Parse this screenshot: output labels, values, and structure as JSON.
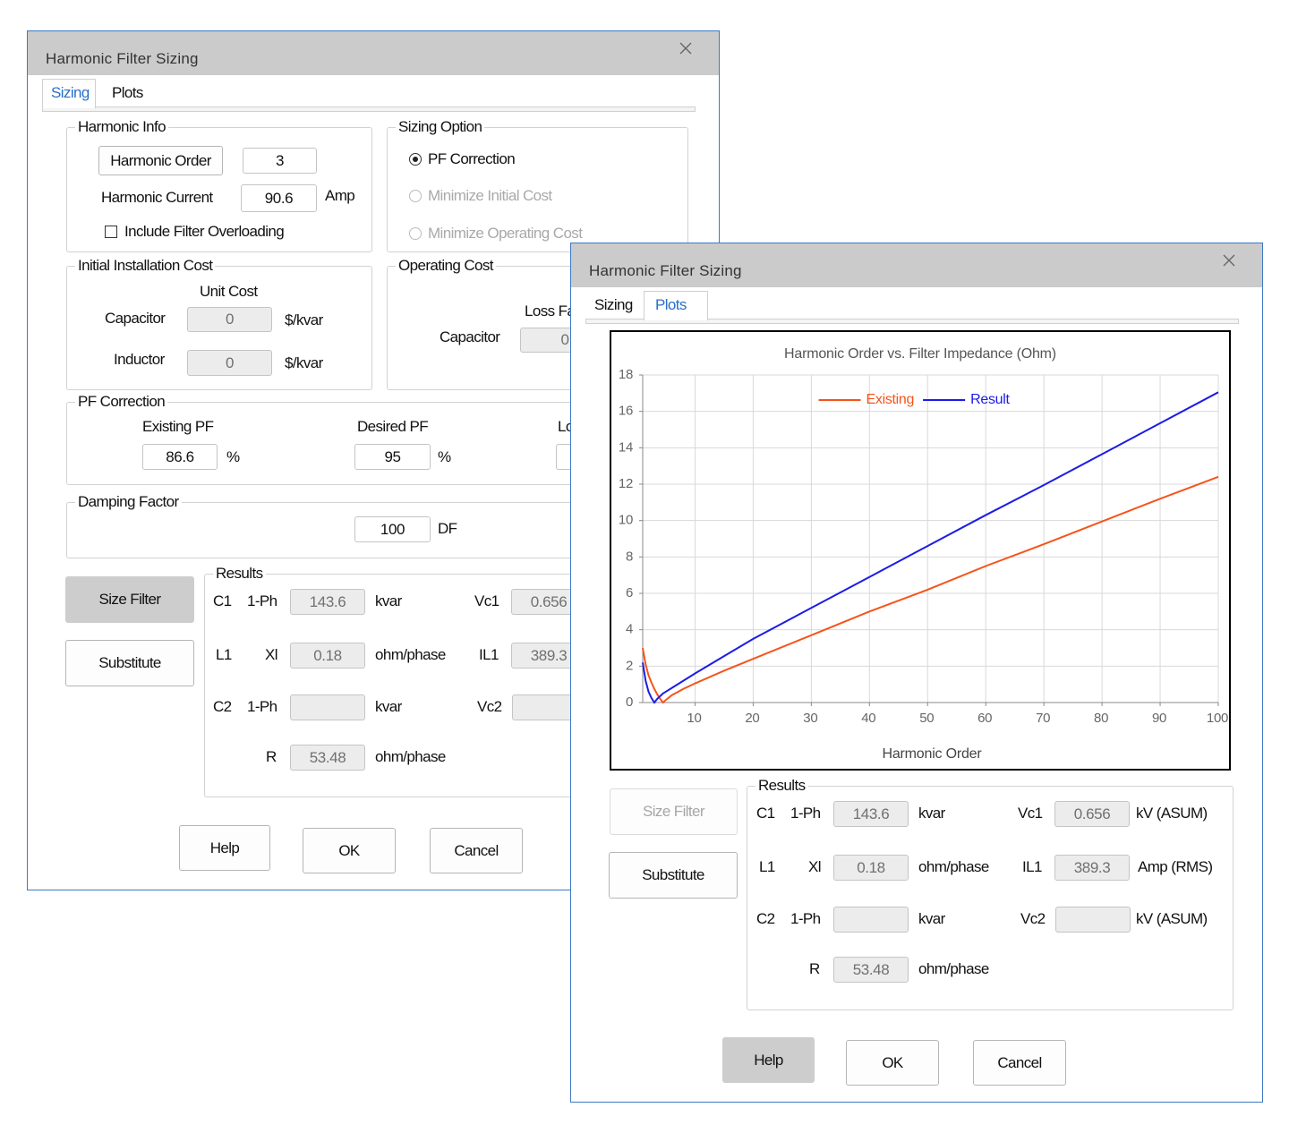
{
  "dialogs": [
    {
      "title": "Harmonic Filter Sizing",
      "tabs": [
        "Sizing",
        "Plots"
      ],
      "harmonic_info": {
        "title": "Harmonic Info",
        "order_button": "Harmonic Order",
        "order": 3,
        "current_label": "Harmonic Current",
        "current": 90.6,
        "current_unit": "Amp",
        "overload_checkbox": "Include Filter Overloading"
      },
      "sizing_option": {
        "title": "Sizing Option",
        "options": [
          "PF Correction",
          "Minimize Initial Cost",
          "Minimize Operating Cost"
        ]
      },
      "initial_cost": {
        "title": "Initial Installation Cost",
        "unit_cost_label": "Unit Cost",
        "capacitor_label": "Capacitor",
        "capacitor": 0,
        "inductor_label": "Inductor",
        "inductor": 0,
        "units": [
          "$/kvar",
          "$/kvar"
        ]
      },
      "operating_cost": {
        "title": "Operating Cost",
        "loss_factor_label": "Loss Fa",
        "capacitor_label": "Capacitor",
        "capacitor": 0
      },
      "pf_correction": {
        "title": "PF Correction",
        "existing_label": "Existing PF",
        "existing": 86.6,
        "desired_label": "Desired PF",
        "desired": 95,
        "units": [
          "%",
          "%"
        ],
        "third_label": "Lo"
      },
      "damping": {
        "title": "Damping Factor",
        "value": 100,
        "unit": "DF"
      },
      "results": {
        "title": "Results",
        "c1_label": "C1",
        "c1_phase": "1-Ph",
        "c1": 143.6,
        "c1_unit": "kvar",
        "vc1_label": "Vc1",
        "vc1": 0.656,
        "l1_label": "L1",
        "xl_label": "Xl",
        "xl": 0.18,
        "xl_unit": "ohm/phase",
        "il1_label": "IL1",
        "il1": 389.3,
        "c2_label": "C2",
        "c2_phase": "1-Ph",
        "c2_unit": "kvar",
        "vc2_label": "Vc2",
        "r_label": "R",
        "r": 53.48,
        "r_unit": "ohm/phase"
      },
      "buttons": {
        "size_filter": "Size Filter",
        "substitute": "Substitute",
        "help": "Help",
        "ok": "OK",
        "cancel": "Cancel"
      }
    },
    {
      "title": "Harmonic Filter Sizing",
      "tabs": [
        "Sizing",
        "Plots"
      ],
      "results": {
        "title": "Results",
        "c1_label": "C1",
        "c1_phase": "1-Ph",
        "c1": 143.6,
        "c1_unit": "kvar",
        "vc1_label": "Vc1",
        "vc1": 0.656,
        "vc1_unit": "kV (ASUM)",
        "l1_label": "L1",
        "xl_label": "Xl",
        "xl": 0.18,
        "xl_unit": "ohm/phase",
        "il1_label": "IL1",
        "il1": 389.3,
        "il1_unit": "Amp (RMS)",
        "c2_label": "C2",
        "c2_phase": "1-Ph",
        "c2_unit": "kvar",
        "vc2_label": "Vc2",
        "vc2_unit": "kV (ASUM)",
        "r_label": "R",
        "r": 53.48,
        "r_unit": "ohm/phase"
      },
      "buttons": {
        "size_filter": "Size Filter",
        "substitute": "Substitute",
        "help": "Help",
        "ok": "OK",
        "cancel": "Cancel"
      }
    }
  ],
  "chart_data": {
    "type": "line",
    "title": "Harmonic Order vs. Filter Impedance (Ohm)",
    "x_label": "Harmonic Order",
    "x": [
      1,
      1.5,
      2,
      2.5,
      3,
      3.5,
      4,
      4.5,
      5,
      6,
      8,
      10,
      15,
      20,
      30,
      40,
      50,
      60,
      70,
      80,
      90,
      100
    ],
    "series": [
      {
        "name": "Existing",
        "color": "#f5541b",
        "values": [
          3.0,
          2.1,
          1.5,
          1.1,
          0.75,
          0.45,
          0.2,
          0.0,
          0.15,
          0.4,
          0.75,
          1.05,
          1.75,
          2.4,
          3.7,
          5.0,
          6.2,
          7.5,
          8.7,
          9.95,
          11.2,
          12.4
        ]
      },
      {
        "name": "Result",
        "color": "#1c1ce6",
        "values": [
          2.2,
          1.2,
          0.6,
          0.25,
          0.0,
          0.2,
          0.35,
          0.5,
          0.6,
          0.8,
          1.2,
          1.6,
          2.55,
          3.5,
          5.2,
          6.9,
          8.6,
          10.3,
          11.95,
          13.65,
          15.35,
          17.05
        ]
      }
    ],
    "xlim": [
      1,
      100
    ],
    "xticks": [
      10,
      20,
      30,
      40,
      50,
      60,
      70,
      80,
      90,
      100
    ],
    "ylim": [
      0,
      18
    ],
    "yticks": [
      0,
      2,
      4,
      6,
      8,
      10,
      12,
      14,
      16,
      18
    ],
    "grid": true,
    "legend": "top"
  }
}
